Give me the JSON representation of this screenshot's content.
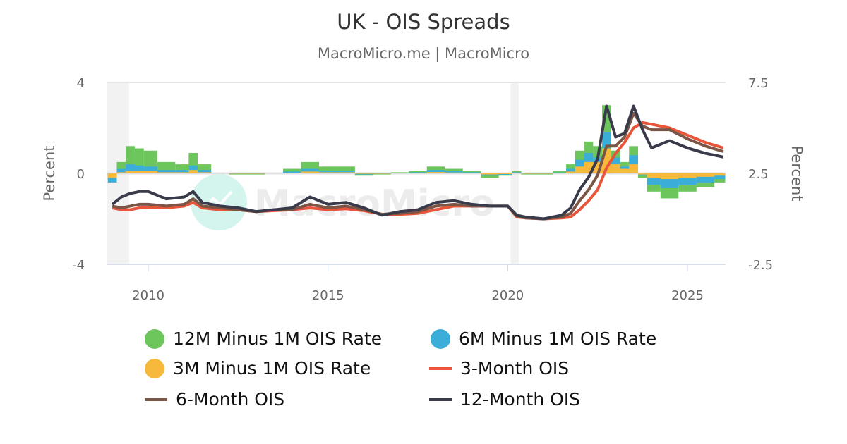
{
  "chart_data": {
    "type": "bar+line",
    "title": "UK - OIS Spreads",
    "subtitle": "MacroMicro.me | MacroMicro",
    "left_axis": {
      "label": "Percent",
      "range": [
        -4,
        4
      ],
      "ticks": [
        "4",
        "0",
        "-4"
      ]
    },
    "right_axis": {
      "label": "Percent",
      "range": [
        -2.5,
        7.5
      ],
      "ticks": [
        "7.5",
        "2.5",
        "-2.5"
      ]
    },
    "x_axis": {
      "range": [
        2008.86,
        2026.06
      ],
      "ticks": [
        "2010",
        "2015",
        "2020",
        "2025"
      ]
    },
    "shaded_periods": [
      [
        2008.86,
        2009.47
      ],
      [
        2020.08,
        2020.31
      ]
    ],
    "grid": "horizontal",
    "legend_position": "bottom",
    "x": [
      2009.0,
      2009.25,
      2009.5,
      2009.75,
      2010.0,
      2010.5,
      2011.0,
      2011.25,
      2011.5,
      2012.0,
      2012.5,
      2013.0,
      2013.5,
      2014.0,
      2014.5,
      2015.0,
      2015.5,
      2016.0,
      2016.5,
      2017.0,
      2017.5,
      2018.0,
      2018.5,
      2019.0,
      2019.5,
      2020.0,
      2020.25,
      2020.5,
      2021.0,
      2021.5,
      2021.75,
      2022.0,
      2022.25,
      2022.5,
      2022.75,
      2023.0,
      2023.25,
      2023.5,
      2023.75,
      2024.0,
      2024.5,
      2025.0,
      2025.5,
      2026.0
    ],
    "series": [
      {
        "name": "12M Minus 1M OIS Rate",
        "type": "bar",
        "axis": "left",
        "color": "#6cc65c",
        "values": [
          -0.3,
          0.5,
          1.2,
          1.1,
          1.0,
          0.5,
          0.4,
          0.9,
          0.4,
          0.0,
          -0.05,
          -0.05,
          0.0,
          0.2,
          0.5,
          0.3,
          0.3,
          -0.1,
          -0.05,
          0.05,
          0.1,
          0.3,
          0.2,
          0.1,
          -0.2,
          -0.1,
          0.1,
          -0.05,
          -0.05,
          0.1,
          0.4,
          1.0,
          1.4,
          1.2,
          3.0,
          1.0,
          0.5,
          1.2,
          -0.2,
          -0.8,
          -1.1,
          -0.8,
          -0.6,
          -0.4
        ]
      },
      {
        "name": "6M Minus 1M OIS Rate",
        "type": "bar",
        "axis": "left",
        "color": "#3aaed8",
        "values": [
          -0.4,
          0.2,
          0.4,
          0.35,
          0.3,
          0.15,
          0.15,
          0.35,
          0.15,
          0.0,
          -0.03,
          -0.03,
          0.0,
          0.08,
          0.2,
          0.12,
          0.12,
          -0.05,
          -0.03,
          0.02,
          0.05,
          0.15,
          0.1,
          0.05,
          -0.1,
          -0.06,
          0.05,
          -0.03,
          -0.03,
          0.04,
          0.2,
          0.6,
          0.9,
          0.7,
          1.8,
          0.7,
          0.3,
          0.8,
          -0.1,
          -0.5,
          -0.65,
          -0.5,
          -0.4,
          -0.25
        ]
      },
      {
        "name": "3M Minus 1M OIS Rate",
        "type": "bar",
        "axis": "left",
        "color": "#f6b93b",
        "values": [
          -0.2,
          0.05,
          0.1,
          0.1,
          0.1,
          0.05,
          0.05,
          0.15,
          0.05,
          0.0,
          -0.02,
          -0.02,
          0.0,
          0.03,
          0.08,
          0.05,
          0.05,
          -0.02,
          -0.02,
          0.01,
          0.02,
          0.06,
          0.04,
          0.02,
          -0.05,
          -0.03,
          0.03,
          -0.02,
          -0.02,
          0.02,
          0.08,
          0.3,
          0.5,
          0.5,
          1.1,
          0.4,
          0.2,
          0.4,
          -0.05,
          -0.2,
          -0.25,
          -0.2,
          -0.15,
          -0.1
        ]
      },
      {
        "name": "3-Month OIS",
        "type": "line",
        "axis": "right",
        "color": "#e8553a",
        "values": [
          0.6,
          0.5,
          0.5,
          0.6,
          0.6,
          0.6,
          0.7,
          0.9,
          0.6,
          0.5,
          0.5,
          0.4,
          0.45,
          0.5,
          0.6,
          0.5,
          0.55,
          0.45,
          0.25,
          0.25,
          0.3,
          0.5,
          0.7,
          0.7,
          0.7,
          0.7,
          0.1,
          0.05,
          0.0,
          0.05,
          0.1,
          0.5,
          1.0,
          1.6,
          2.8,
          3.6,
          4.2,
          5.0,
          5.3,
          5.2,
          5.0,
          4.6,
          4.2,
          3.9
        ]
      },
      {
        "name": "6-Month OIS",
        "type": "line",
        "axis": "right",
        "color": "#7b5545",
        "values": [
          0.7,
          0.6,
          0.7,
          0.8,
          0.8,
          0.7,
          0.8,
          1.1,
          0.7,
          0.6,
          0.5,
          0.4,
          0.5,
          0.5,
          0.8,
          0.6,
          0.7,
          0.5,
          0.25,
          0.3,
          0.4,
          0.7,
          0.8,
          0.7,
          0.7,
          0.7,
          0.15,
          0.05,
          0.0,
          0.1,
          0.3,
          1.0,
          1.6,
          2.4,
          4.0,
          4.0,
          4.5,
          5.8,
          5.1,
          4.9,
          4.9,
          4.4,
          4.0,
          3.7
        ]
      },
      {
        "name": "12-Month OIS",
        "type": "line",
        "axis": "right",
        "color": "#393b4b",
        "values": [
          0.8,
          1.2,
          1.4,
          1.5,
          1.5,
          1.1,
          1.2,
          1.5,
          0.9,
          0.7,
          0.6,
          0.4,
          0.5,
          0.6,
          1.2,
          0.8,
          0.9,
          0.6,
          0.2,
          0.4,
          0.5,
          0.9,
          1.0,
          0.8,
          0.7,
          0.7,
          0.2,
          0.1,
          0.0,
          0.2,
          0.6,
          1.6,
          2.3,
          3.3,
          6.2,
          4.5,
          4.7,
          6.2,
          4.9,
          3.9,
          4.3,
          3.9,
          3.6,
          3.4
        ]
      }
    ]
  },
  "watermark": "MacroMicro"
}
